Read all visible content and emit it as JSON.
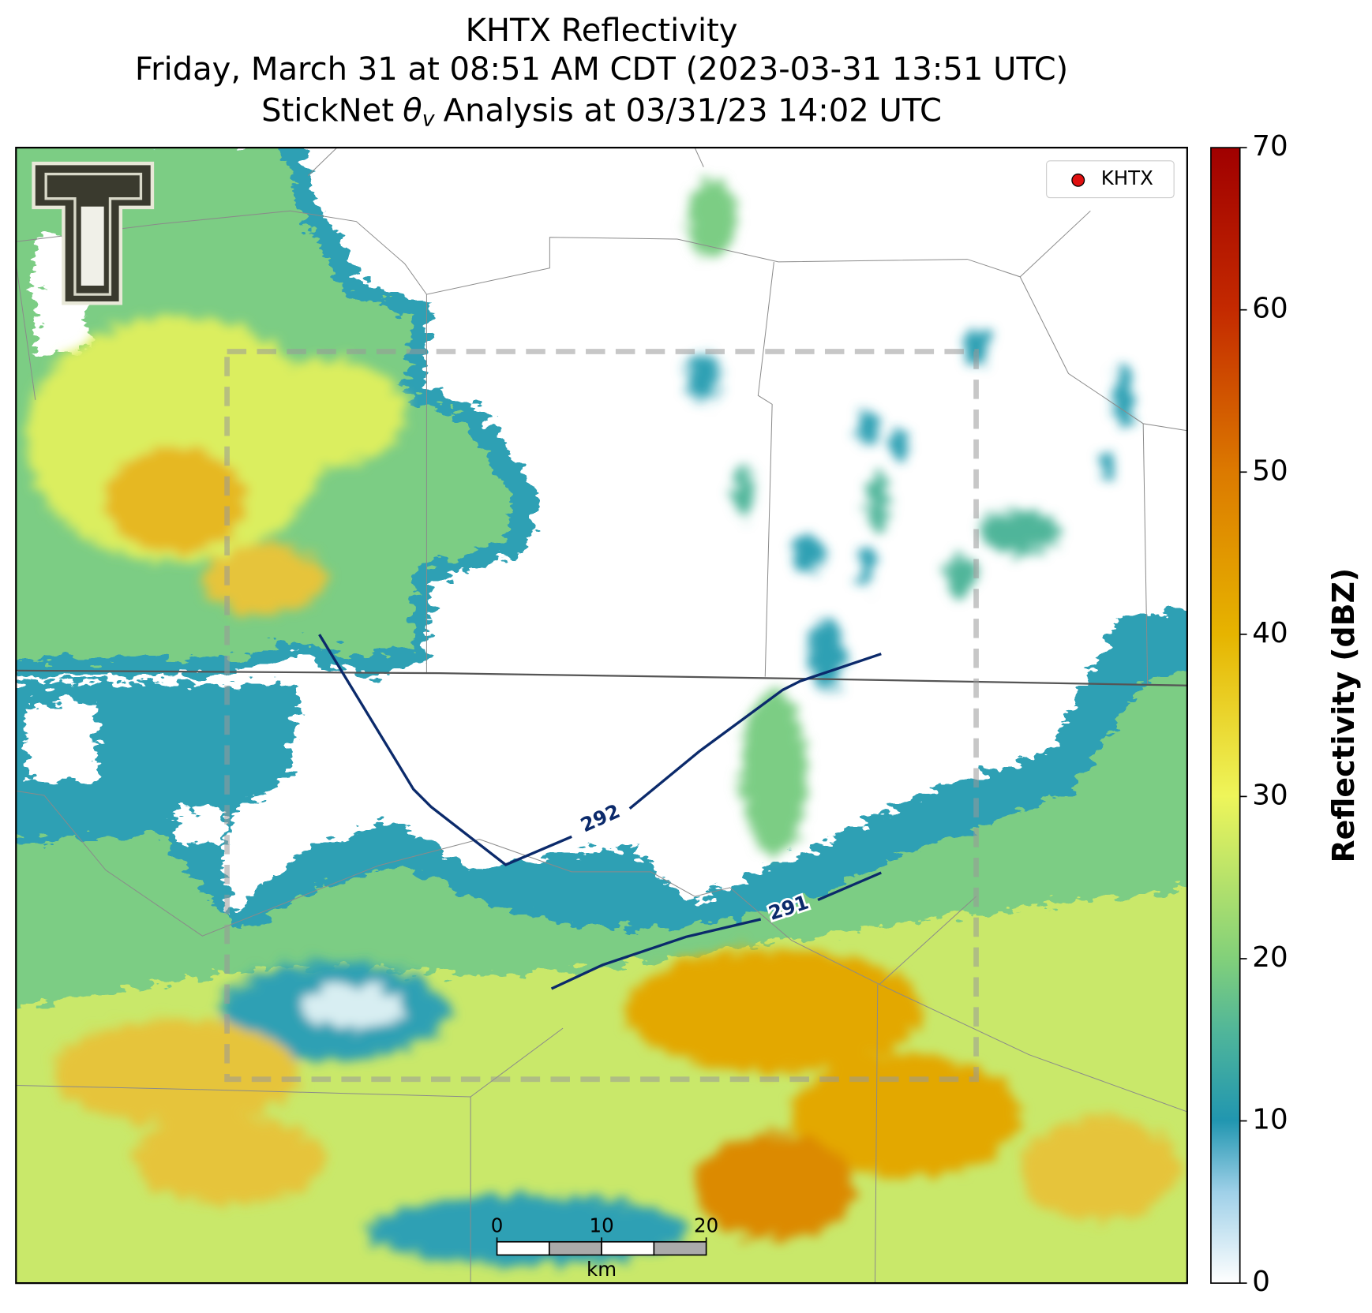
{
  "title": "KHTX Reflectivity",
  "subtitle": "Friday, March 31 at 08:51 AM CDT (2023-03-31 13:51 UTC)",
  "analysis": {
    "prefix": "StickNet",
    "symbol": "θ",
    "subscript": "v",
    "suffix": "Analysis at 03/31/23 14:02 UTC"
  },
  "legend": {
    "label": "KHTX",
    "color": "#e01010"
  },
  "colorbar": {
    "label": "Reflectivity (dBZ)",
    "range": [
      0,
      70
    ],
    "ticks": [
      0,
      10,
      20,
      30,
      40,
      50,
      60,
      70
    ]
  },
  "contours": [
    {
      "value": 292,
      "color": "#0b2a6b"
    },
    {
      "value": 291,
      "color": "#0b2a6b"
    }
  ],
  "scale_bar": {
    "ticks": [
      0,
      10,
      20
    ],
    "unit": "km"
  }
}
